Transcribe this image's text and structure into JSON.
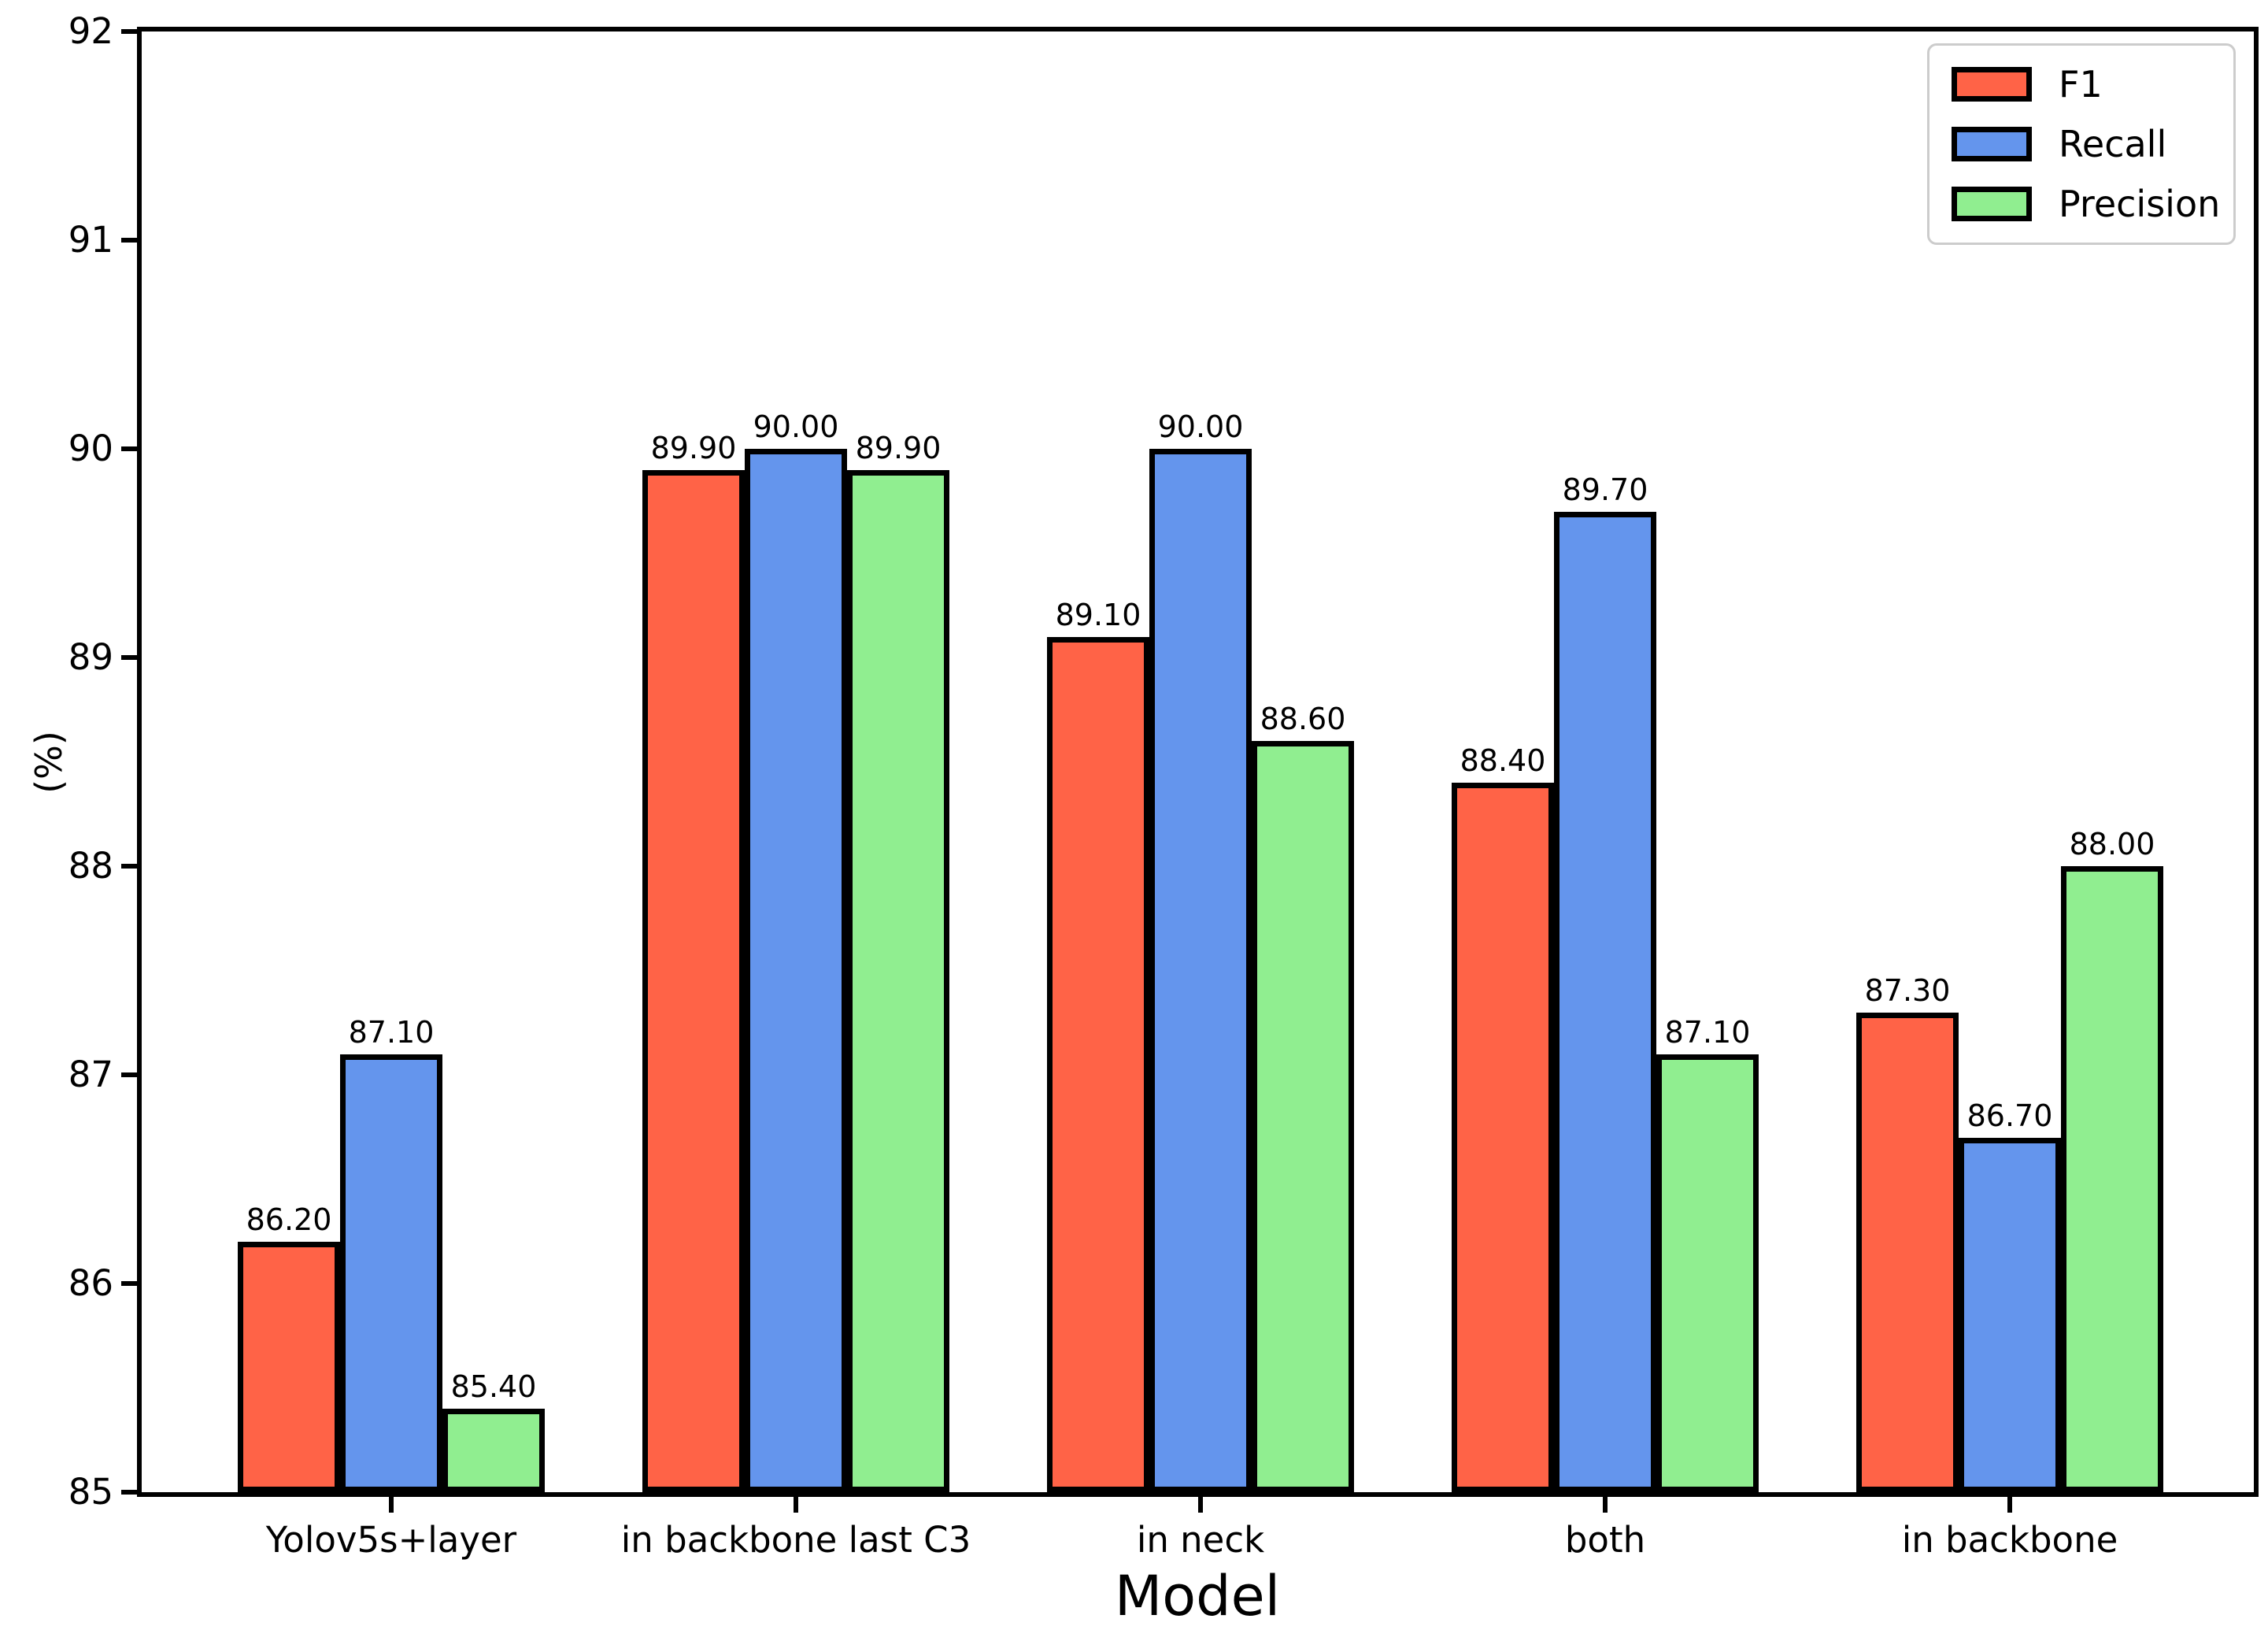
{
  "chart_data": {
    "type": "bar",
    "title": "",
    "xlabel": "Model",
    "ylabel": "(%)",
    "ylim": [
      85,
      92
    ],
    "yticks": [
      85,
      86,
      87,
      88,
      89,
      90,
      91,
      92
    ],
    "grid": false,
    "legend_position": "top-right",
    "categories": [
      "Yolov5s+layer",
      "in backbone last C3",
      "in neck",
      "both",
      "in backbone"
    ],
    "series": [
      {
        "name": "F1",
        "color": "#FF6347",
        "values": [
          86.2,
          89.9,
          89.1,
          88.4,
          87.3
        ],
        "labels": [
          "86.20",
          "89.90",
          "89.10",
          "88.40",
          "87.30"
        ]
      },
      {
        "name": "Recall",
        "color": "#6495ED",
        "values": [
          87.1,
          90.0,
          90.0,
          89.7,
          86.7
        ],
        "labels": [
          "87.10",
          "90.00",
          "90.00",
          "89.70",
          "86.70"
        ]
      },
      {
        "name": "Precision",
        "color": "#90EE90",
        "values": [
          85.4,
          89.9,
          88.6,
          87.1,
          88.0
        ],
        "labels": [
          "85.40",
          "89.90",
          "88.60",
          "87.10",
          "88.00"
        ]
      }
    ],
    "bar_edge_color": "#000000",
    "spine_color": "#000000",
    "legend_border_color": "#cccccc"
  }
}
